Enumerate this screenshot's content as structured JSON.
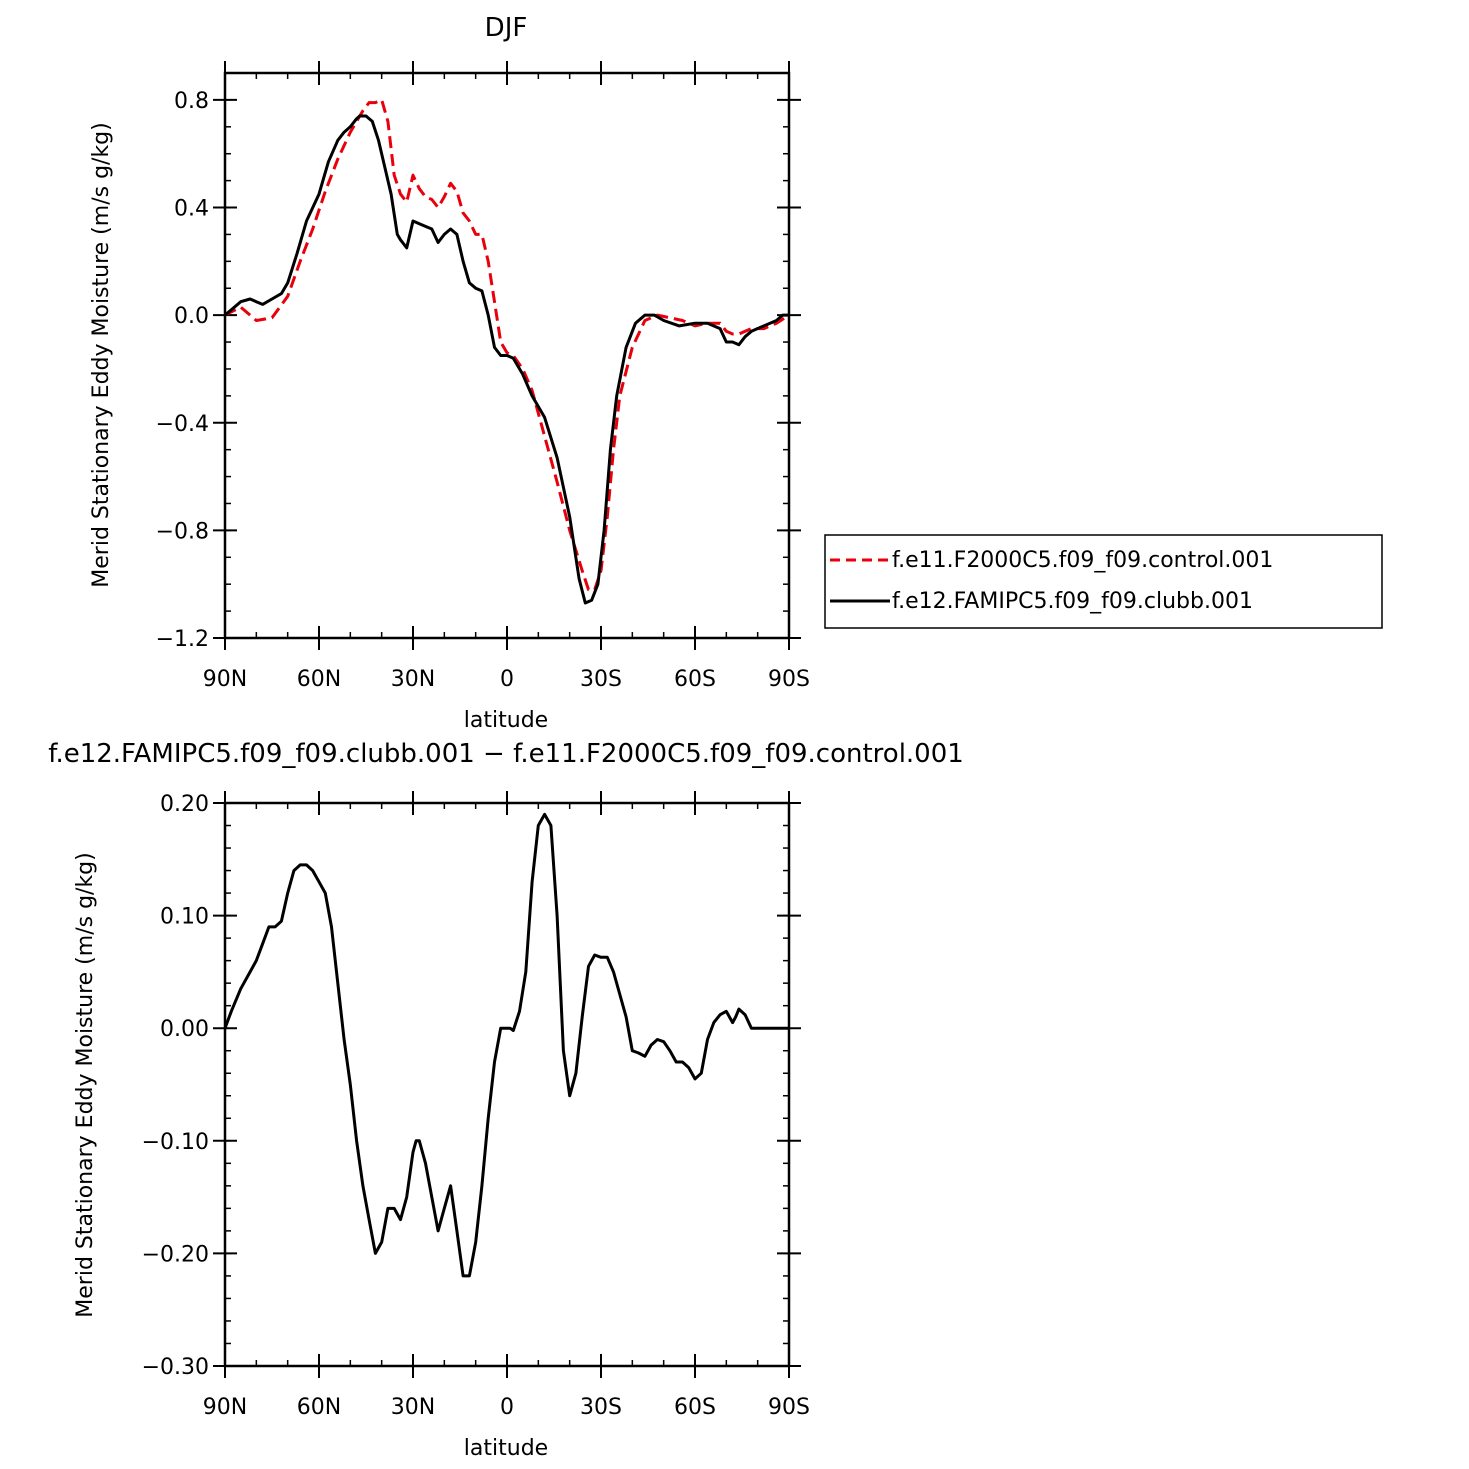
{
  "colors": {
    "control": "#e8000b",
    "clubb": "#000000"
  },
  "chart_data": [
    {
      "type": "line",
      "title": "DJF",
      "xlabel": "latitude",
      "ylabel": "Merid Stationary Eddy Moisture (m/s g/kg)",
      "xlim": [
        90,
        -90
      ],
      "ylim": [
        -1.2,
        0.9
      ],
      "xticks": [
        {
          "value": 90,
          "label": "90N"
        },
        {
          "value": 60,
          "label": "60N"
        },
        {
          "value": 30,
          "label": "30N"
        },
        {
          "value": 0,
          "label": "0"
        },
        {
          "value": -30,
          "label": "30S"
        },
        {
          "value": -60,
          "label": "60S"
        },
        {
          "value": -90,
          "label": "90S"
        }
      ],
      "yticks": [
        {
          "value": 0.8,
          "label": "0.8"
        },
        {
          "value": 0.4,
          "label": "0.4"
        },
        {
          "value": 0.0,
          "label": "0.0"
        },
        {
          "value": -0.4,
          "label": "−0.4"
        },
        {
          "value": -0.8,
          "label": "−0.8"
        },
        {
          "value": -1.2,
          "label": "−1.2"
        }
      ],
      "legend_position": "right",
      "series": [
        {
          "name": "f.e11.F2000C5.f09_f09.control.001",
          "style": "dashed",
          "color": "#e8000b",
          "x": [
            90,
            85,
            80,
            75,
            70,
            66,
            62,
            58,
            54,
            50,
            46,
            44,
            42,
            40,
            38,
            36,
            34,
            32,
            30,
            28,
            26,
            24,
            22,
            20,
            18,
            16,
            14,
            12,
            10,
            8,
            6,
            4,
            2,
            0,
            -2,
            -5,
            -8,
            -12,
            -16,
            -20,
            -24,
            -26,
            -28,
            -30,
            -32,
            -34,
            -36,
            -40,
            -44,
            -48,
            -52,
            -56,
            -60,
            -64,
            -68,
            -70,
            -72,
            -74,
            -78,
            -82,
            -86,
            -90
          ],
          "y": [
            0.0,
            0.03,
            -0.02,
            -0.01,
            0.07,
            0.2,
            0.32,
            0.46,
            0.58,
            0.68,
            0.76,
            0.79,
            0.79,
            0.8,
            0.72,
            0.52,
            0.45,
            0.42,
            0.52,
            0.47,
            0.44,
            0.43,
            0.4,
            0.44,
            0.49,
            0.46,
            0.38,
            0.35,
            0.3,
            0.3,
            0.2,
            0.05,
            -0.1,
            -0.14,
            -0.15,
            -0.2,
            -0.28,
            -0.45,
            -0.62,
            -0.8,
            -0.95,
            -1.02,
            -1.02,
            -0.95,
            -0.75,
            -0.5,
            -0.3,
            -0.12,
            -0.02,
            0.0,
            -0.01,
            -0.02,
            -0.04,
            -0.03,
            -0.03,
            -0.06,
            -0.07,
            -0.07,
            -0.05,
            -0.05,
            -0.03,
            0.0
          ]
        },
        {
          "name": "f.e12.FAMIPC5.f09_f09.clubb.001",
          "style": "solid",
          "color": "#000000",
          "x": [
            90,
            88,
            85,
            82,
            80,
            78,
            75,
            72,
            70,
            67,
            64,
            60,
            57,
            54,
            52,
            50,
            48,
            47,
            45,
            43,
            41,
            39,
            37,
            35,
            34,
            32,
            30,
            28,
            26,
            24,
            22,
            20,
            18,
            16,
            14,
            12,
            10,
            8,
            6,
            4,
            2,
            0,
            -2,
            -5,
            -8,
            -12,
            -16,
            -20,
            -23,
            -25,
            -27,
            -29,
            -31,
            -33,
            -35,
            -38,
            -41,
            -44,
            -47,
            -50,
            -55,
            -60,
            -64,
            -68,
            -70,
            -72,
            -74,
            -76,
            -78,
            -82,
            -86,
            -88,
            -90
          ],
          "y": [
            0.0,
            0.02,
            0.05,
            0.06,
            0.05,
            0.04,
            0.06,
            0.08,
            0.12,
            0.23,
            0.35,
            0.45,
            0.57,
            0.65,
            0.68,
            0.7,
            0.73,
            0.74,
            0.74,
            0.72,
            0.65,
            0.55,
            0.45,
            0.3,
            0.28,
            0.25,
            0.35,
            0.34,
            0.33,
            0.32,
            0.27,
            0.3,
            0.32,
            0.3,
            0.2,
            0.12,
            0.1,
            0.09,
            0.0,
            -0.12,
            -0.15,
            -0.15,
            -0.16,
            -0.22,
            -0.3,
            -0.38,
            -0.53,
            -0.75,
            -0.98,
            -1.07,
            -1.06,
            -1.0,
            -0.8,
            -0.5,
            -0.3,
            -0.12,
            -0.03,
            0.0,
            0.0,
            -0.02,
            -0.04,
            -0.03,
            -0.03,
            -0.05,
            -0.1,
            -0.1,
            -0.11,
            -0.08,
            -0.06,
            -0.04,
            -0.02,
            0.0,
            0.0
          ]
        }
      ]
    },
    {
      "type": "line",
      "title": "f.e12.FAMIPC5.f09_f09.clubb.001 − f.e11.F2000C5.f09_f09.control.001",
      "xlabel": "latitude",
      "ylabel": "Merid Stationary Eddy Moisture (m/s g/kg)",
      "xlim": [
        90,
        -90
      ],
      "ylim": [
        -0.3,
        0.2
      ],
      "xticks": [
        {
          "value": 90,
          "label": "90N"
        },
        {
          "value": 60,
          "label": "60N"
        },
        {
          "value": 30,
          "label": "30N"
        },
        {
          "value": 0,
          "label": "0"
        },
        {
          "value": -30,
          "label": "30S"
        },
        {
          "value": -60,
          "label": "60S"
        },
        {
          "value": -90,
          "label": "90S"
        }
      ],
      "yticks": [
        {
          "value": 0.2,
          "label": "0.20"
        },
        {
          "value": 0.1,
          "label": "0.10"
        },
        {
          "value": 0.0,
          "label": "0.00"
        },
        {
          "value": -0.1,
          "label": "−0.10"
        },
        {
          "value": -0.2,
          "label": "−0.20"
        },
        {
          "value": -0.3,
          "label": "−0.30"
        }
      ],
      "series": [
        {
          "style": "solid",
          "color": "#000000",
          "x": [
            90,
            88,
            85,
            82,
            80,
            78,
            76,
            74,
            72,
            70,
            68,
            66,
            64,
            62,
            60,
            58,
            56,
            54,
            52,
            50,
            48,
            46,
            44,
            42,
            40,
            38,
            36,
            34,
            32,
            30,
            29,
            28,
            26,
            24,
            22,
            20,
            18,
            16,
            14,
            12,
            10,
            8,
            6,
            4,
            2,
            0,
            -1,
            -2,
            -4,
            -6,
            -8,
            -10,
            -12,
            -14,
            -16,
            -18,
            -20,
            -22,
            -24,
            -26,
            -28,
            -30,
            -32,
            -34,
            -36,
            -38,
            -40,
            -42,
            -44,
            -46,
            -48,
            -50,
            -52,
            -54,
            -56,
            -58,
            -60,
            -62,
            -64,
            -66,
            -68,
            -70,
            -72,
            -73,
            -74,
            -76,
            -78,
            -80,
            -82,
            -84,
            -86,
            -88,
            -90
          ],
          "y": [
            0.0,
            0.015,
            0.035,
            0.05,
            0.06,
            0.075,
            0.09,
            0.09,
            0.095,
            0.12,
            0.14,
            0.145,
            0.145,
            0.14,
            0.13,
            0.12,
            0.09,
            0.04,
            -0.01,
            -0.05,
            -0.1,
            -0.14,
            -0.17,
            -0.2,
            -0.19,
            -0.16,
            -0.16,
            -0.17,
            -0.15,
            -0.11,
            -0.1,
            -0.1,
            -0.12,
            -0.15,
            -0.18,
            -0.16,
            -0.14,
            -0.18,
            -0.22,
            -0.22,
            -0.19,
            -0.14,
            -0.08,
            -0.03,
            0.0,
            0.0,
            0.0,
            -0.002,
            0.015,
            0.05,
            0.13,
            0.18,
            0.19,
            0.18,
            0.1,
            -0.02,
            -0.06,
            -0.04,
            0.01,
            0.055,
            0.065,
            0.063,
            0.063,
            0.05,
            0.03,
            0.01,
            -0.02,
            -0.022,
            -0.025,
            -0.015,
            -0.01,
            -0.012,
            -0.02,
            -0.03,
            -0.03,
            -0.035,
            -0.045,
            -0.04,
            -0.01,
            0.005,
            0.012,
            0.015,
            0.005,
            0.01,
            0.017,
            0.012,
            0.0,
            0.0,
            0.0,
            0.0,
            0.0,
            0.0,
            0.0
          ]
        }
      ]
    }
  ]
}
